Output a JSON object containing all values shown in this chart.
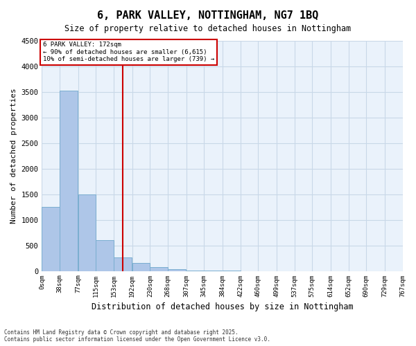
{
  "title": "6, PARK VALLEY, NOTTINGHAM, NG7 1BQ",
  "subtitle": "Size of property relative to detached houses in Nottingham",
  "xlabel": "Distribution of detached houses by size in Nottingham",
  "ylabel": "Number of detached properties",
  "bar_color": "#aec6e8",
  "bar_edge_color": "#7aaed0",
  "grid_color": "#c8d8e8",
  "bg_color": "#eaf2fb",
  "annotation_box_color": "#cc0000",
  "property_line_color": "#cc0000",
  "property_value": 172,
  "property_label": "6 PARK VALLEY: 172sqm",
  "annotation_line1": "← 90% of detached houses are smaller (6,615)",
  "annotation_line2": "10% of semi-detached houses are larger (739) →",
  "bin_labels": [
    "0sqm",
    "38sqm",
    "77sqm",
    "115sqm",
    "153sqm",
    "192sqm",
    "230sqm",
    "268sqm",
    "307sqm",
    "345sqm",
    "384sqm",
    "422sqm",
    "460sqm",
    "499sqm",
    "537sqm",
    "575sqm",
    "614sqm",
    "652sqm",
    "690sqm",
    "729sqm",
    "767sqm"
  ],
  "bin_edges": [
    0,
    38,
    77,
    115,
    153,
    192,
    230,
    268,
    307,
    345,
    384,
    422,
    460,
    499,
    537,
    575,
    614,
    652,
    690,
    729,
    767
  ],
  "bar_heights": [
    1250,
    3530,
    1490,
    600,
    270,
    160,
    80,
    30,
    5,
    2,
    1,
    0,
    0,
    0,
    0,
    0,
    0,
    0,
    0,
    0
  ],
  "ylim": [
    0,
    4500
  ],
  "yticks": [
    0,
    500,
    1000,
    1500,
    2000,
    2500,
    3000,
    3500,
    4000,
    4500
  ],
  "footer_line1": "Contains HM Land Registry data © Crown copyright and database right 2025.",
  "footer_line2": "Contains public sector information licensed under the Open Government Licence v3.0.",
  "figsize": [
    6.0,
    5.0
  ],
  "dpi": 100
}
